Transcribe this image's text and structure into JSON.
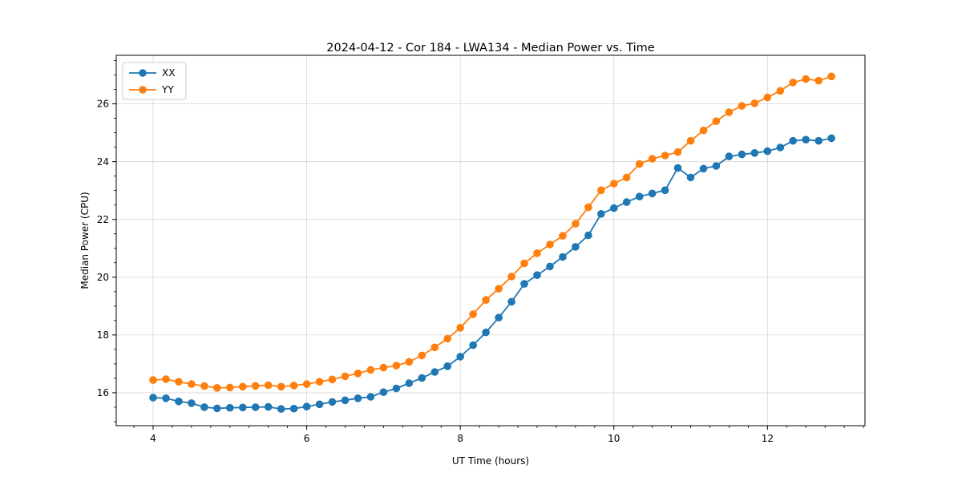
{
  "title": "2024-04-12 - Cor 184 - LWA134 - Median Power vs. Time",
  "axes": {
    "xlabel": "UT Time (hours)",
    "ylabel": "Median Power (CPU)"
  },
  "legend": {
    "position": "upper left",
    "entries": [
      {
        "label": "XX",
        "color": "#1f77b4"
      },
      {
        "label": "YY",
        "color": "#ff7f0e"
      }
    ]
  },
  "chart_data": {
    "type": "line",
    "title": "2024-04-12 - Cor 184 - LWA134 - Median Power vs. Time",
    "xlabel": "UT Time (hours)",
    "ylabel": "Median Power (CPU)",
    "grid": true,
    "legend_position": "upper left",
    "marker": "o",
    "xlim": [
      3.52,
      13.27
    ],
    "ylim": [
      14.86,
      27.68
    ],
    "xticks": [
      4,
      6,
      8,
      10,
      12
    ],
    "yticks": [
      16,
      18,
      20,
      22,
      24,
      26
    ],
    "x_minor_step": 0.25,
    "y_minor_step": 0.5,
    "x": [
      4.0,
      4.167,
      4.333,
      4.5,
      4.667,
      4.833,
      5.0,
      5.167,
      5.333,
      5.5,
      5.667,
      5.833,
      6.0,
      6.167,
      6.333,
      6.5,
      6.667,
      6.833,
      7.0,
      7.167,
      7.333,
      7.5,
      7.667,
      7.833,
      8.0,
      8.167,
      8.333,
      8.5,
      8.667,
      8.833,
      9.0,
      9.167,
      9.333,
      9.5,
      9.667,
      9.833,
      10.0,
      10.167,
      10.333,
      10.5,
      10.667,
      10.833,
      11.0,
      11.167,
      11.333,
      11.5,
      11.667,
      11.833,
      12.0,
      12.167,
      12.333,
      12.5,
      12.667,
      12.833
    ],
    "series": [
      {
        "name": "XX",
        "color": "#1f77b4",
        "values": [
          15.83,
          15.81,
          15.7,
          15.64,
          15.5,
          15.46,
          15.48,
          15.49,
          15.5,
          15.51,
          15.44,
          15.45,
          15.52,
          15.6,
          15.68,
          15.74,
          15.81,
          15.86,
          16.02,
          16.15,
          16.33,
          16.51,
          16.72,
          16.92,
          17.25,
          17.65,
          18.09,
          18.6,
          19.15,
          19.77,
          20.07,
          20.37,
          20.7,
          21.05,
          21.45,
          22.19,
          22.39,
          22.6,
          22.79,
          22.9,
          23.01,
          23.78,
          23.45,
          23.76,
          23.85,
          24.18,
          24.25,
          24.3,
          24.36,
          24.49,
          24.72,
          24.76,
          24.72,
          24.81
        ]
      },
      {
        "name": "YY",
        "color": "#ff7f0e",
        "values": [
          16.44,
          16.47,
          16.38,
          16.3,
          16.23,
          16.17,
          16.18,
          16.21,
          16.24,
          16.26,
          16.21,
          16.25,
          16.3,
          16.38,
          16.46,
          16.57,
          16.67,
          16.79,
          16.87,
          16.94,
          17.07,
          17.29,
          17.57,
          17.87,
          18.25,
          18.72,
          19.21,
          19.6,
          20.02,
          20.48,
          20.83,
          21.13,
          21.43,
          21.85,
          22.42,
          23.01,
          23.24,
          23.45,
          23.92,
          24.1,
          24.21,
          24.33,
          24.72,
          25.08,
          25.4,
          25.71,
          25.93,
          26.02,
          26.22,
          26.45,
          26.74,
          26.86,
          26.8,
          26.95
        ]
      }
    ]
  },
  "style": {
    "grid_color": "#d9d9d9",
    "spine_color": "#000000",
    "background": "#ffffff",
    "legend_border": "#cccccc"
  }
}
